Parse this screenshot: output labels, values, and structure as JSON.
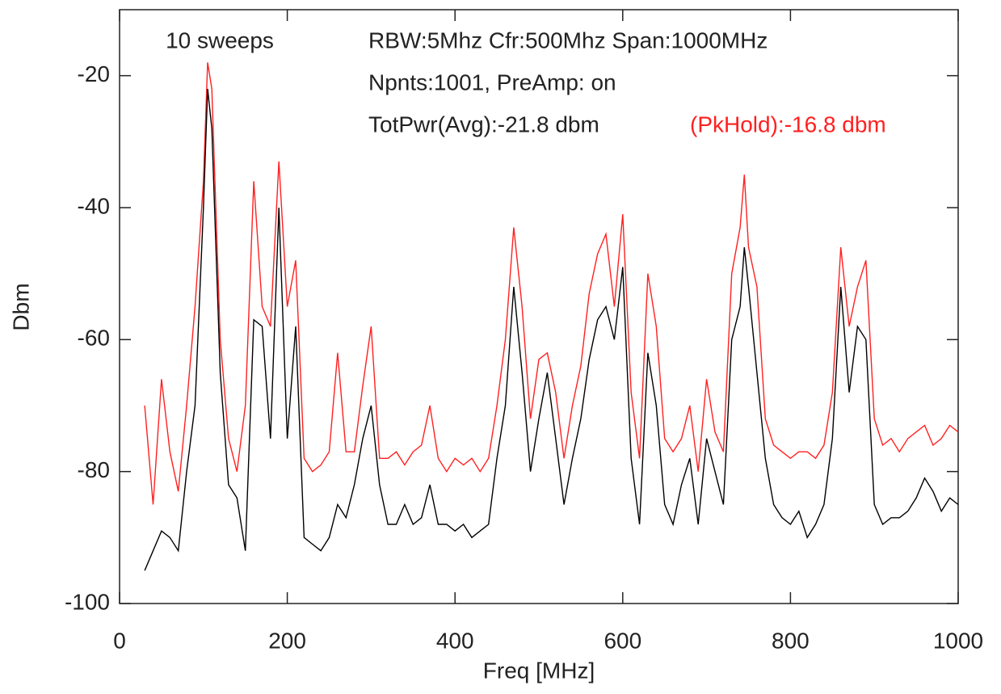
{
  "chart_data": {
    "type": "line",
    "xlabel": "Freq [MHz]",
    "ylabel": "Dbm",
    "annotations": [
      {
        "text": "10 sweeps",
        "color": "#222222"
      },
      {
        "text": "RBW:5Mhz Cfr:500Mhz Span:1000MHz",
        "color": "#222222"
      },
      {
        "text": "Npnts:1001,  PreAmp: on",
        "color": "#222222"
      },
      {
        "text": "TotPwr(Avg):-21.8 dbm",
        "color": "#222222"
      },
      {
        "text": "(PkHold):-16.8 dbm",
        "color": "#ff2020"
      }
    ],
    "xlim": [
      0,
      1000
    ],
    "ylim": [
      -100,
      -10
    ],
    "xticks": [
      0,
      200,
      400,
      600,
      800,
      1000
    ],
    "yticks": [
      -100,
      -80,
      -60,
      -40,
      -20
    ],
    "x": [
      30,
      40,
      50,
      60,
      70,
      80,
      90,
      100,
      105,
      110,
      120,
      130,
      140,
      150,
      160,
      170,
      180,
      190,
      200,
      210,
      220,
      230,
      240,
      250,
      260,
      270,
      280,
      290,
      300,
      310,
      320,
      330,
      340,
      350,
      360,
      370,
      380,
      390,
      400,
      410,
      420,
      430,
      440,
      450,
      460,
      470,
      480,
      490,
      500,
      510,
      520,
      530,
      540,
      550,
      560,
      570,
      580,
      590,
      600,
      610,
      620,
      630,
      640,
      650,
      660,
      670,
      680,
      690,
      700,
      710,
      720,
      730,
      740,
      745,
      750,
      760,
      770,
      780,
      790,
      800,
      810,
      820,
      830,
      840,
      850,
      860,
      870,
      880,
      890,
      900,
      910,
      920,
      930,
      940,
      950,
      960,
      970,
      980,
      990,
      1000
    ],
    "series": [
      {
        "color": "#ff2020",
        "values": [
          -70,
          -85,
          -66,
          -77,
          -83,
          -70,
          -55,
          -36,
          -18,
          -22,
          -60,
          -75,
          -80,
          -70,
          -36,
          -55,
          -58,
          -33,
          -55,
          -48,
          -78,
          -80,
          -79,
          -77,
          -62,
          -77,
          -77,
          -67,
          -58,
          -78,
          -78,
          -77,
          -79,
          -77,
          -76,
          -70,
          -78,
          -80,
          -78,
          -79,
          -78,
          -80,
          -78,
          -70,
          -60,
          -43,
          -55,
          -72,
          -63,
          -62,
          -68,
          -78,
          -70,
          -64,
          -53,
          -47,
          -44,
          -55,
          -41,
          -68,
          -78,
          -50,
          -58,
          -75,
          -77,
          -75,
          -70,
          -80,
          -66,
          -74,
          -77,
          -50,
          -43,
          -35,
          -46,
          -52,
          -72,
          -76,
          -77,
          -78,
          -77,
          -77,
          -78,
          -76,
          -68,
          -46,
          -58,
          -52,
          -48,
          -72,
          -76,
          -75,
          -77,
          -75,
          -74,
          -73,
          -76,
          -75,
          -73,
          -74
        ]
      },
      {
        "color": "#000000",
        "values": [
          -95,
          -92,
          -89,
          -90,
          -92,
          -80,
          -70,
          -40,
          -22,
          -28,
          -65,
          -82,
          -84,
          -92,
          -57,
          -58,
          -75,
          -40,
          -75,
          -58,
          -90,
          -91,
          -92,
          -90,
          -85,
          -87,
          -82,
          -75,
          -70,
          -82,
          -88,
          -88,
          -85,
          -88,
          -87,
          -82,
          -88,
          -88,
          -89,
          -88,
          -90,
          -89,
          -88,
          -78,
          -70,
          -52,
          -65,
          -80,
          -72,
          -65,
          -75,
          -85,
          -78,
          -72,
          -63,
          -57,
          -55,
          -60,
          -49,
          -78,
          -88,
          -62,
          -70,
          -85,
          -88,
          -82,
          -78,
          -88,
          -75,
          -80,
          -85,
          -60,
          -55,
          -46,
          -52,
          -65,
          -78,
          -85,
          -87,
          -88,
          -86,
          -90,
          -88,
          -85,
          -75,
          -52,
          -68,
          -58,
          -60,
          -85,
          -88,
          -87,
          -87,
          -86,
          -84,
          -81,
          -83,
          -86,
          -84,
          -85
        ]
      }
    ]
  }
}
